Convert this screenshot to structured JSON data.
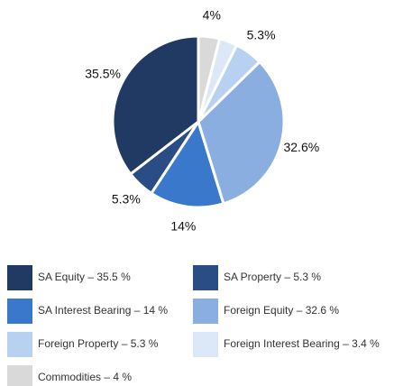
{
  "chart_data": {
    "type": "pie",
    "categories": [
      "SA Equity – 35.5 %",
      "SA Property – 5.3 %",
      "SA Interest Bearing – 14 %",
      "Foreign Equity – 32.6 %",
      "Foreign Property – 5.3 %",
      "Foreign Interest Bearing – 3.4 %",
      "Commodities – 4 %"
    ],
    "values": [
      35.5,
      5.3,
      14,
      32.6,
      5.3,
      3.4,
      4
    ],
    "value_labels": [
      "35.5%",
      "5.3%",
      "14%",
      "32.6%",
      "5.3%",
      null,
      "4%"
    ],
    "colors": [
      "#213a63",
      "#2a4d85",
      "#3a78cc",
      "#8aaee0",
      "#b9d1f1",
      "#dce8f8",
      "#d9d9d9"
    ],
    "legend": "bottom"
  }
}
